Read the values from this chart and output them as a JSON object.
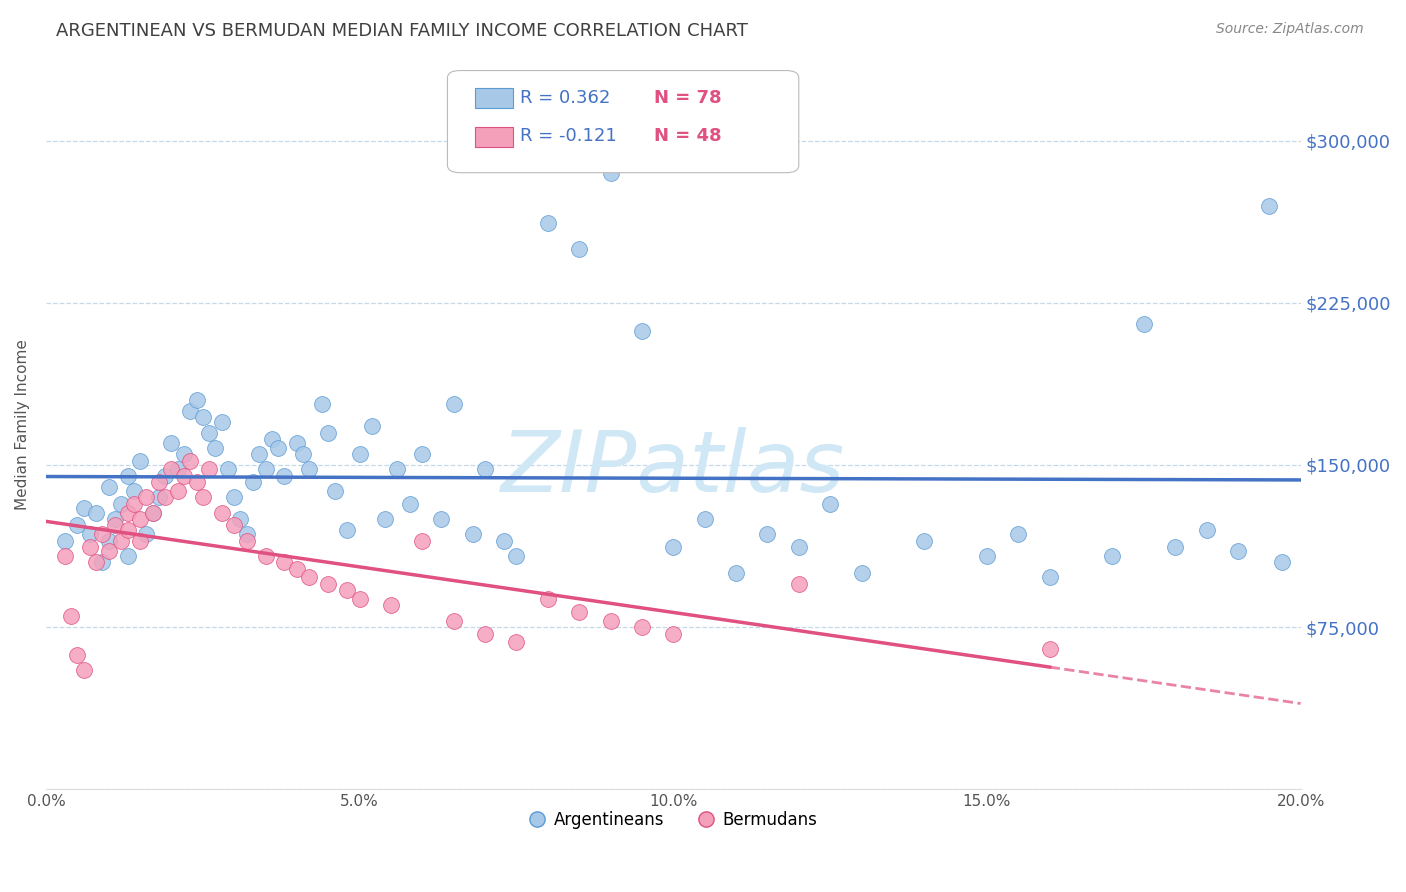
{
  "title": "ARGENTINEAN VS BERMUDAN MEDIAN FAMILY INCOME CORRELATION CHART",
  "source": "Source: ZipAtlas.com",
  "ylabel": "Median Family Income",
  "xlim": [
    0.0,
    0.2
  ],
  "ylim": [
    0,
    337500
  ],
  "yticks": [
    0,
    75000,
    150000,
    225000,
    300000
  ],
  "ytick_labels": [
    "",
    "$75,000",
    "$150,000",
    "$225,000",
    "$300,000"
  ],
  "xticks": [
    0.0,
    0.05,
    0.1,
    0.15,
    0.2
  ],
  "xtick_labels": [
    "0.0%",
    "5.0%",
    "10.0%",
    "15.0%",
    "20.0%"
  ],
  "blue_R": 0.362,
  "blue_N": 78,
  "pink_R": -0.121,
  "pink_N": 48,
  "blue_dot_color": "#a8c8e8",
  "blue_edge_color": "#5b9bd5",
  "pink_dot_color": "#f4a0bb",
  "pink_edge_color": "#e05080",
  "line_blue_color": "#4472c4",
  "line_pink_color": "#e05080",
  "background": "#ffffff",
  "grid_color": "#c6d9e8",
  "title_color": "#404040",
  "axis_label_color": "#555555",
  "right_tick_color": "#4472c4",
  "watermark_text": "ZIPatlas",
  "watermark_color": "#d0e8f5",
  "legend_R_color": "#4472c4",
  "legend_N_color": "#e05080",
  "blue_scatter_x": [
    0.003,
    0.005,
    0.006,
    0.007,
    0.008,
    0.009,
    0.01,
    0.01,
    0.011,
    0.012,
    0.013,
    0.013,
    0.014,
    0.015,
    0.016,
    0.017,
    0.018,
    0.019,
    0.02,
    0.021,
    0.022,
    0.023,
    0.024,
    0.025,
    0.026,
    0.027,
    0.028,
    0.029,
    0.03,
    0.031,
    0.032,
    0.033,
    0.034,
    0.035,
    0.036,
    0.037,
    0.038,
    0.04,
    0.041,
    0.042,
    0.044,
    0.045,
    0.046,
    0.048,
    0.05,
    0.052,
    0.054,
    0.056,
    0.058,
    0.06,
    0.063,
    0.065,
    0.068,
    0.07,
    0.073,
    0.075,
    0.08,
    0.085,
    0.09,
    0.095,
    0.1,
    0.105,
    0.11,
    0.115,
    0.12,
    0.125,
    0.13,
    0.14,
    0.15,
    0.155,
    0.16,
    0.17,
    0.175,
    0.18,
    0.185,
    0.19,
    0.195,
    0.197
  ],
  "blue_scatter_y": [
    115000,
    122000,
    130000,
    118000,
    128000,
    105000,
    115000,
    140000,
    125000,
    132000,
    108000,
    145000,
    138000,
    152000,
    118000,
    128000,
    135000,
    145000,
    160000,
    148000,
    155000,
    175000,
    180000,
    172000,
    165000,
    158000,
    170000,
    148000,
    135000,
    125000,
    118000,
    142000,
    155000,
    148000,
    162000,
    158000,
    145000,
    160000,
    155000,
    148000,
    178000,
    165000,
    138000,
    120000,
    155000,
    168000,
    125000,
    148000,
    132000,
    155000,
    125000,
    178000,
    118000,
    148000,
    115000,
    108000,
    262000,
    250000,
    285000,
    212000,
    112000,
    125000,
    100000,
    118000,
    112000,
    132000,
    100000,
    115000,
    108000,
    118000,
    98000,
    108000,
    215000,
    112000,
    120000,
    110000,
    270000,
    105000
  ],
  "pink_scatter_x": [
    0.003,
    0.004,
    0.005,
    0.006,
    0.007,
    0.008,
    0.009,
    0.01,
    0.011,
    0.012,
    0.013,
    0.013,
    0.014,
    0.015,
    0.015,
    0.016,
    0.017,
    0.018,
    0.019,
    0.02,
    0.021,
    0.022,
    0.023,
    0.024,
    0.025,
    0.026,
    0.028,
    0.03,
    0.032,
    0.035,
    0.038,
    0.04,
    0.042,
    0.045,
    0.048,
    0.05,
    0.055,
    0.06,
    0.065,
    0.07,
    0.075,
    0.08,
    0.085,
    0.09,
    0.095,
    0.1,
    0.12,
    0.16
  ],
  "pink_scatter_y": [
    108000,
    80000,
    62000,
    55000,
    112000,
    105000,
    118000,
    110000,
    122000,
    115000,
    128000,
    120000,
    132000,
    125000,
    115000,
    135000,
    128000,
    142000,
    135000,
    148000,
    138000,
    145000,
    152000,
    142000,
    135000,
    148000,
    128000,
    122000,
    115000,
    108000,
    105000,
    102000,
    98000,
    95000,
    92000,
    88000,
    85000,
    115000,
    78000,
    72000,
    68000,
    88000,
    82000,
    78000,
    75000,
    72000,
    95000,
    65000
  ]
}
